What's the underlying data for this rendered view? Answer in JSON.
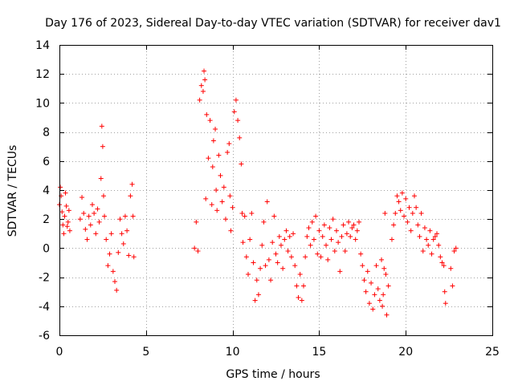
{
  "chart_data": {
    "type": "scatter",
    "title": "Day 176 of 2023, Sidereal Day-to-day VTEC variation (SDTVAR) for receiver dav1",
    "xlabel": "GPS time / hours",
    "ylabel": "SDTVAR / TECUs",
    "xlim": [
      0,
      25
    ],
    "ylim": [
      -6,
      14
    ],
    "xticks": [
      0,
      5,
      10,
      15,
      20,
      25
    ],
    "yticks": [
      -6,
      -4,
      -2,
      0,
      2,
      4,
      6,
      8,
      10,
      12,
      14
    ],
    "grid": true,
    "marker": "+",
    "color": "#ff0000",
    "series": [
      {
        "name": "SDTVAR",
        "points": [
          [
            0.0,
            3.0
          ],
          [
            0.05,
            4.2
          ],
          [
            0.1,
            3.6
          ],
          [
            0.15,
            2.5
          ],
          [
            0.2,
            1.6
          ],
          [
            0.25,
            1.0
          ],
          [
            0.3,
            2.2
          ],
          [
            0.35,
            3.8
          ],
          [
            0.4,
            2.9
          ],
          [
            0.45,
            1.5
          ],
          [
            0.5,
            1.8
          ],
          [
            0.55,
            2.6
          ],
          [
            0.6,
            1.2
          ],
          [
            1.2,
            2.0
          ],
          [
            1.3,
            3.5
          ],
          [
            1.4,
            2.4
          ],
          [
            1.5,
            1.3
          ],
          [
            1.6,
            0.6
          ],
          [
            1.7,
            2.2
          ],
          [
            1.8,
            1.6
          ],
          [
            1.9,
            3.0
          ],
          [
            2.0,
            2.4
          ],
          [
            2.1,
            1.0
          ],
          [
            2.2,
            2.7
          ],
          [
            2.3,
            1.8
          ],
          [
            2.4,
            4.8
          ],
          [
            2.45,
            8.4
          ],
          [
            2.5,
            7.0
          ],
          [
            2.55,
            3.6
          ],
          [
            2.6,
            2.2
          ],
          [
            2.7,
            0.6
          ],
          [
            2.8,
            -1.2
          ],
          [
            2.9,
            -0.4
          ],
          [
            3.0,
            1.0
          ],
          [
            3.1,
            -1.6
          ],
          [
            3.2,
            -2.3
          ],
          [
            3.3,
            -2.9
          ],
          [
            3.4,
            -0.3
          ],
          [
            3.5,
            2.0
          ],
          [
            3.6,
            1.0
          ],
          [
            3.7,
            0.3
          ],
          [
            3.8,
            2.2
          ],
          [
            3.9,
            1.2
          ],
          [
            4.0,
            -0.5
          ],
          [
            4.1,
            3.6
          ],
          [
            4.2,
            4.4
          ],
          [
            4.25,
            2.2
          ],
          [
            4.3,
            -0.6
          ],
          [
            7.8,
            0.0
          ],
          [
            7.9,
            1.8
          ],
          [
            8.0,
            -0.2
          ],
          [
            8.1,
            10.2
          ],
          [
            8.2,
            11.2
          ],
          [
            8.3,
            10.8
          ],
          [
            8.35,
            12.2
          ],
          [
            8.4,
            11.6
          ],
          [
            8.45,
            3.4
          ],
          [
            8.5,
            9.2
          ],
          [
            8.6,
            6.2
          ],
          [
            8.7,
            8.8
          ],
          [
            8.8,
            3.0
          ],
          [
            8.85,
            5.6
          ],
          [
            8.9,
            7.4
          ],
          [
            9.0,
            8.2
          ],
          [
            9.05,
            4.0
          ],
          [
            9.1,
            2.6
          ],
          [
            9.2,
            6.4
          ],
          [
            9.3,
            5.0
          ],
          [
            9.4,
            3.2
          ],
          [
            9.5,
            4.2
          ],
          [
            9.6,
            2.0
          ],
          [
            9.7,
            6.6
          ],
          [
            9.8,
            7.2
          ],
          [
            9.85,
            3.6
          ],
          [
            9.9,
            1.2
          ],
          [
            10.0,
            2.8
          ],
          [
            10.1,
            9.4
          ],
          [
            10.2,
            10.2
          ],
          [
            10.3,
            8.8
          ],
          [
            10.4,
            7.6
          ],
          [
            10.5,
            5.8
          ],
          [
            10.55,
            2.4
          ],
          [
            10.6,
            0.4
          ],
          [
            10.7,
            2.2
          ],
          [
            10.8,
            -0.6
          ],
          [
            10.9,
            -1.8
          ],
          [
            11.0,
            0.6
          ],
          [
            11.1,
            2.4
          ],
          [
            11.2,
            -1.0
          ],
          [
            11.3,
            -3.6
          ],
          [
            11.4,
            -2.2
          ],
          [
            11.5,
            -3.2
          ],
          [
            11.6,
            -1.4
          ],
          [
            11.7,
            0.2
          ],
          [
            11.8,
            1.8
          ],
          [
            11.9,
            -1.2
          ],
          [
            12.0,
            3.2
          ],
          [
            12.1,
            -0.8
          ],
          [
            12.2,
            -2.2
          ],
          [
            12.3,
            0.4
          ],
          [
            12.4,
            2.2
          ],
          [
            12.5,
            -0.4
          ],
          [
            12.6,
            -1.0
          ],
          [
            12.7,
            0.8
          ],
          [
            12.8,
            0.2
          ],
          [
            12.9,
            -1.4
          ],
          [
            13.0,
            0.6
          ],
          [
            13.1,
            1.2
          ],
          [
            13.2,
            -0.2
          ],
          [
            13.3,
            0.8
          ],
          [
            13.4,
            -0.6
          ],
          [
            13.5,
            1.0
          ],
          [
            13.6,
            -1.2
          ],
          [
            13.7,
            -2.6
          ],
          [
            13.8,
            -3.4
          ],
          [
            13.9,
            -1.8
          ],
          [
            14.0,
            -3.6
          ],
          [
            14.1,
            -2.6
          ],
          [
            14.2,
            -0.6
          ],
          [
            14.3,
            0.8
          ],
          [
            14.4,
            1.4
          ],
          [
            14.5,
            0.2
          ],
          [
            14.6,
            1.8
          ],
          [
            14.7,
            0.6
          ],
          [
            14.8,
            2.2
          ],
          [
            14.9,
            -0.4
          ],
          [
            15.0,
            1.2
          ],
          [
            15.1,
            -0.6
          ],
          [
            15.2,
            0.8
          ],
          [
            15.3,
            1.6
          ],
          [
            15.4,
            0.2
          ],
          [
            15.5,
            -0.8
          ],
          [
            15.6,
            1.4
          ],
          [
            15.7,
            0.6
          ],
          [
            15.8,
            2.0
          ],
          [
            15.9,
            -0.2
          ],
          [
            16.0,
            1.2
          ],
          [
            16.1,
            0.4
          ],
          [
            16.2,
            -1.6
          ],
          [
            16.3,
            0.8
          ],
          [
            16.4,
            1.6
          ],
          [
            16.5,
            -0.2
          ],
          [
            16.6,
            1.0
          ],
          [
            16.7,
            1.8
          ],
          [
            16.8,
            0.8
          ],
          [
            16.9,
            1.4
          ],
          [
            17.0,
            1.6
          ],
          [
            17.1,
            0.6
          ],
          [
            17.2,
            1.2
          ],
          [
            17.3,
            1.8
          ],
          [
            17.4,
            -0.4
          ],
          [
            17.5,
            -1.2
          ],
          [
            17.6,
            -2.2
          ],
          [
            17.7,
            -3.0
          ],
          [
            17.8,
            -1.6
          ],
          [
            17.9,
            -3.8
          ],
          [
            18.0,
            -2.4
          ],
          [
            18.1,
            -4.2
          ],
          [
            18.2,
            -3.2
          ],
          [
            18.3,
            -1.2
          ],
          [
            18.4,
            -2.8
          ],
          [
            18.5,
            -3.6
          ],
          [
            18.6,
            -0.8
          ],
          [
            18.65,
            -4.0
          ],
          [
            18.7,
            -3.2
          ],
          [
            18.75,
            -1.4
          ],
          [
            18.8,
            2.4
          ],
          [
            18.85,
            -1.8
          ],
          [
            18.9,
            -4.6
          ],
          [
            19.0,
            -2.6
          ],
          [
            19.2,
            0.6
          ],
          [
            19.3,
            1.6
          ],
          [
            19.4,
            2.4
          ],
          [
            19.5,
            3.6
          ],
          [
            19.6,
            3.2
          ],
          [
            19.7,
            2.6
          ],
          [
            19.8,
            3.8
          ],
          [
            19.9,
            2.2
          ],
          [
            20.0,
            3.4
          ],
          [
            20.1,
            1.8
          ],
          [
            20.2,
            2.8
          ],
          [
            20.3,
            1.2
          ],
          [
            20.4,
            2.4
          ],
          [
            20.5,
            3.6
          ],
          [
            20.6,
            2.8
          ],
          [
            20.7,
            1.6
          ],
          [
            20.8,
            0.8
          ],
          [
            20.9,
            2.4
          ],
          [
            21.0,
            -0.2
          ],
          [
            21.1,
            1.4
          ],
          [
            21.2,
            0.6
          ],
          [
            21.3,
            0.2
          ],
          [
            21.4,
            1.2
          ],
          [
            21.5,
            -0.4
          ],
          [
            21.6,
            0.6
          ],
          [
            21.7,
            0.8
          ],
          [
            21.8,
            1.0
          ],
          [
            21.9,
            0.2
          ],
          [
            22.0,
            -0.6
          ],
          [
            22.1,
            -1.0
          ],
          [
            22.2,
            -1.2
          ],
          [
            22.25,
            -3.0
          ],
          [
            22.3,
            -3.8
          ],
          [
            22.6,
            -1.4
          ],
          [
            22.7,
            -2.6
          ],
          [
            22.8,
            -0.2
          ],
          [
            22.9,
            0.0
          ]
        ]
      }
    ]
  }
}
